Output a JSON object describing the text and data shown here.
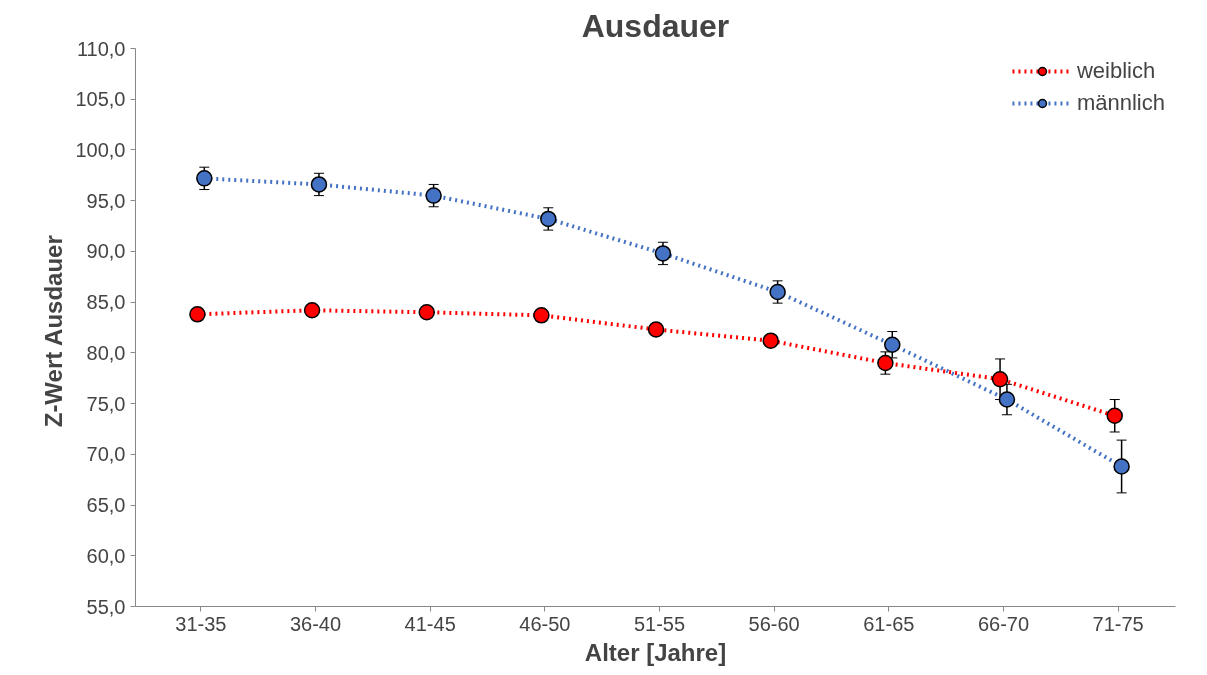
{
  "chart_data": {
    "type": "line",
    "title": "Ausdauer",
    "xlabel": "Alter [Jahre]",
    "ylabel": "Z-Wert  Ausdauer",
    "categories": [
      "31-35",
      "36-40",
      "41-45",
      "46-50",
      "51-55",
      "56-60",
      "61-65",
      "66-70",
      "71-75"
    ],
    "series": [
      {
        "name": "weiblich",
        "color": "#ff0000",
        "values": [
          83.8,
          84.2,
          84.0,
          83.7,
          82.3,
          81.2,
          79.0,
          77.4,
          73.8
        ],
        "errors": [
          null,
          null,
          null,
          null,
          null,
          null,
          1.1,
          2.0,
          1.6
        ]
      },
      {
        "name": "männlich",
        "color": "#4472c4",
        "values": [
          97.2,
          96.6,
          95.5,
          93.2,
          89.8,
          86.0,
          80.8,
          75.4,
          68.8
        ],
        "errors": [
          1.1,
          1.1,
          1.1,
          1.1,
          1.1,
          1.1,
          1.3,
          1.5,
          2.6
        ]
      }
    ],
    "ylim": [
      55,
      110
    ],
    "yticks": [
      {
        "value": 55,
        "label": "55,0"
      },
      {
        "value": 60,
        "label": "60,0"
      },
      {
        "value": 65,
        "label": "65,0"
      },
      {
        "value": 70,
        "label": "70,0"
      },
      {
        "value": 75,
        "label": "75,0"
      },
      {
        "value": 80,
        "label": "80,0"
      },
      {
        "value": 85,
        "label": "85,0"
      },
      {
        "value": 90,
        "label": "90,0"
      },
      {
        "value": 95,
        "label": "95,0"
      },
      {
        "value": 100,
        "label": "100,0"
      },
      {
        "value": 105,
        "label": "105,0"
      },
      {
        "value": 110,
        "label": "110,0"
      }
    ],
    "grid": false,
    "legend": "top right",
    "marker": "circle",
    "line_style": "dotted"
  }
}
